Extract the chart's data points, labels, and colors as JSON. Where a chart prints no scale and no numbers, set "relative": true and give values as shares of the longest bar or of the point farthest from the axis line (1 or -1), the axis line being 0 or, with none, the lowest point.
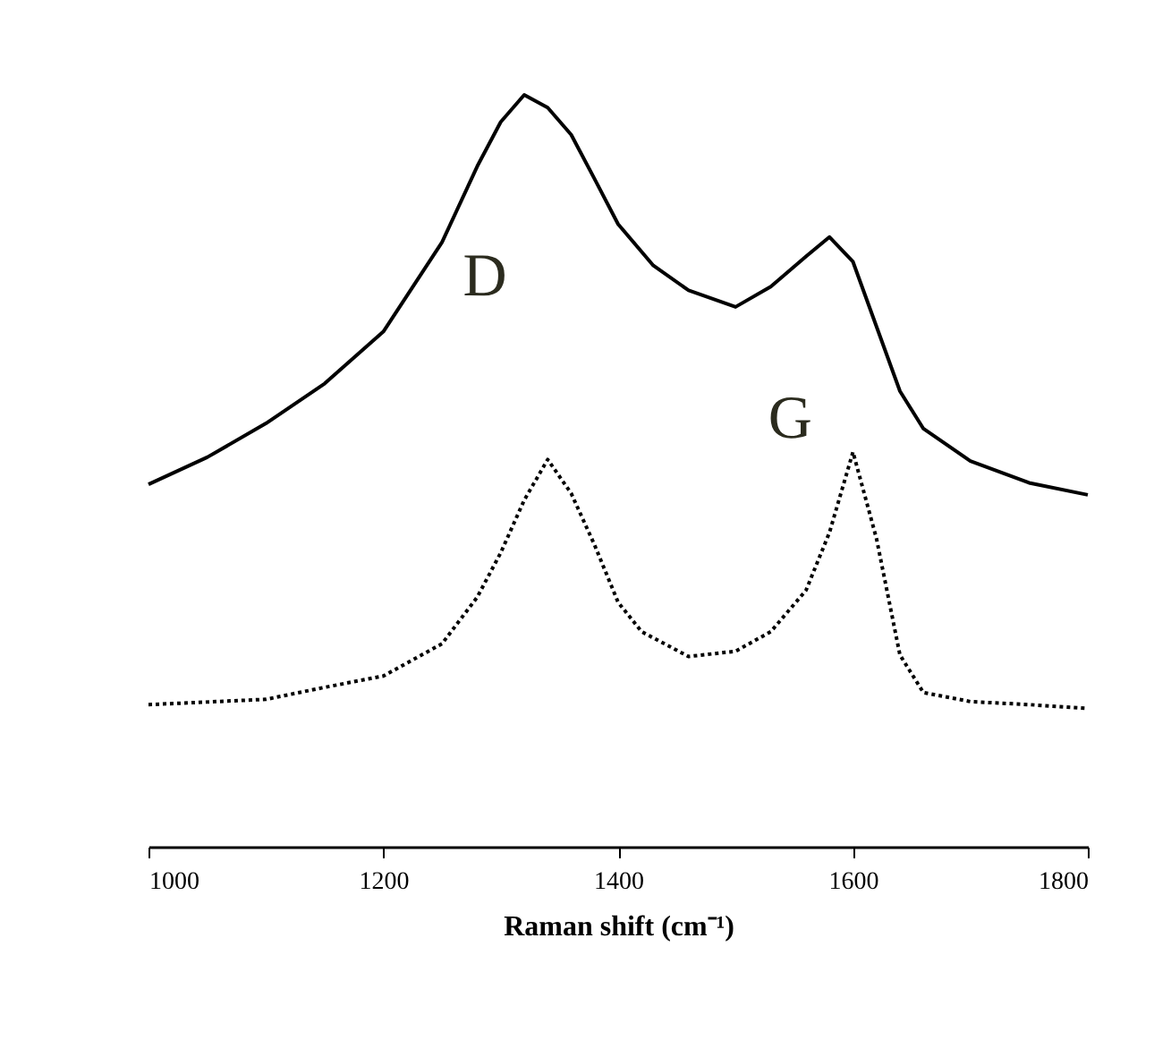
{
  "chart_data": {
    "type": "line",
    "relative": true,
    "xlabel": "Raman shift (cm⁻¹)",
    "xlim": [
      1000,
      1800
    ],
    "xticks": [
      1000,
      1200,
      1400,
      1600,
      1800
    ],
    "grid": false,
    "annotations": [
      {
        "text": "D",
        "x": 1320,
        "y": 1
      },
      {
        "text": "G",
        "x": 1580,
        "y": 0.811
      }
    ],
    "series": [
      {
        "color": "#000000",
        "line_style": "solid",
        "x": [
          1000,
          1050,
          1100,
          1150,
          1200,
          1250,
          1280,
          1300,
          1320,
          1340,
          1360,
          1380,
          1400,
          1430,
          1460,
          1500,
          1530,
          1560,
          1580,
          1600,
          1620,
          1640,
          1660,
          1700,
          1750,
          1800
        ],
        "values": [
          0.482,
          0.518,
          0.563,
          0.616,
          0.685,
          0.804,
          0.905,
          0.964,
          1,
          0.983,
          0.947,
          0.888,
          0.828,
          0.773,
          0.74,
          0.718,
          0.745,
          0.785,
          0.811,
          0.778,
          0.692,
          0.606,
          0.556,
          0.513,
          0.484,
          0.468
        ]
      },
      {
        "color": "#000000",
        "line_style": "dotted",
        "x": [
          1000,
          1100,
          1150,
          1200,
          1250,
          1280,
          1300,
          1320,
          1340,
          1360,
          1380,
          1400,
          1420,
          1460,
          1500,
          1530,
          1560,
          1580,
          1600,
          1620,
          1640,
          1660,
          1700,
          1750,
          1800
        ],
        "values": [
          0.189,
          0.196,
          0.212,
          0.227,
          0.27,
          0.332,
          0.391,
          0.461,
          0.515,
          0.47,
          0.401,
          0.325,
          0.286,
          0.253,
          0.26,
          0.286,
          0.341,
          0.418,
          0.525,
          0.41,
          0.255,
          0.205,
          0.193,
          0.189,
          0.184
        ]
      }
    ]
  }
}
